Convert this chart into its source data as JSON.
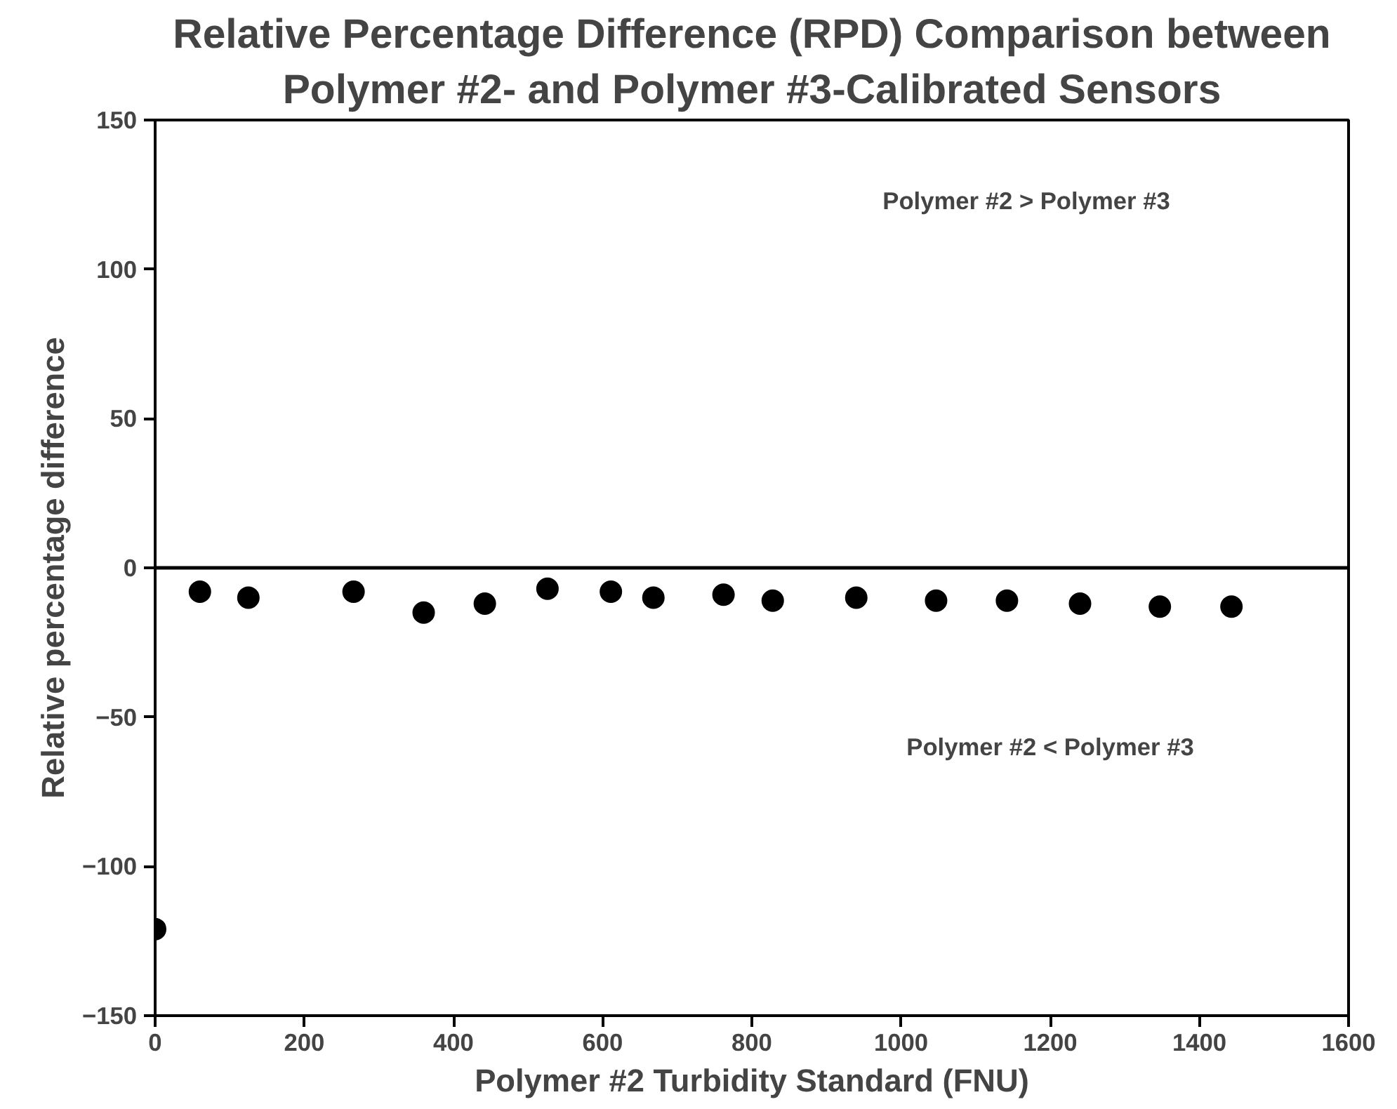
{
  "chart_data": {
    "type": "scatter",
    "title": "Relative Percentage Difference (RPD) Comparison between\nPolymer #2- and Polymer #3-Calibrated Sensors",
    "xlabel": "Polymer #2 Turbidity Standard (FNU)",
    "ylabel": "Relative percentage difference",
    "x": [
      0,
      60,
      125,
      266,
      360,
      442,
      526,
      611,
      668,
      762,
      828,
      940,
      1047,
      1142,
      1240,
      1347,
      1443
    ],
    "values": [
      -121,
      -8,
      -10,
      -8,
      -15,
      -12,
      -7,
      -8,
      -10,
      -9,
      -11,
      -10,
      -11,
      -11,
      -12,
      -13,
      -13
    ],
    "color": "#000000",
    "marker": "circle",
    "xlim": [
      0,
      1600
    ],
    "xticks": [
      0,
      200,
      400,
      600,
      800,
      1000,
      1200,
      1400,
      1600
    ],
    "ylim": [
      -150,
      150
    ],
    "yticks": [
      -150,
      -100,
      -50,
      0,
      50,
      100,
      150
    ],
    "grid": false,
    "ref_lines": [
      {
        "axis": "y",
        "value": 0,
        "color": "#000000"
      }
    ],
    "annotations": [
      "Polymer #2 > Polymer #3",
      "Polymer #2 < Polymer #3"
    ]
  }
}
